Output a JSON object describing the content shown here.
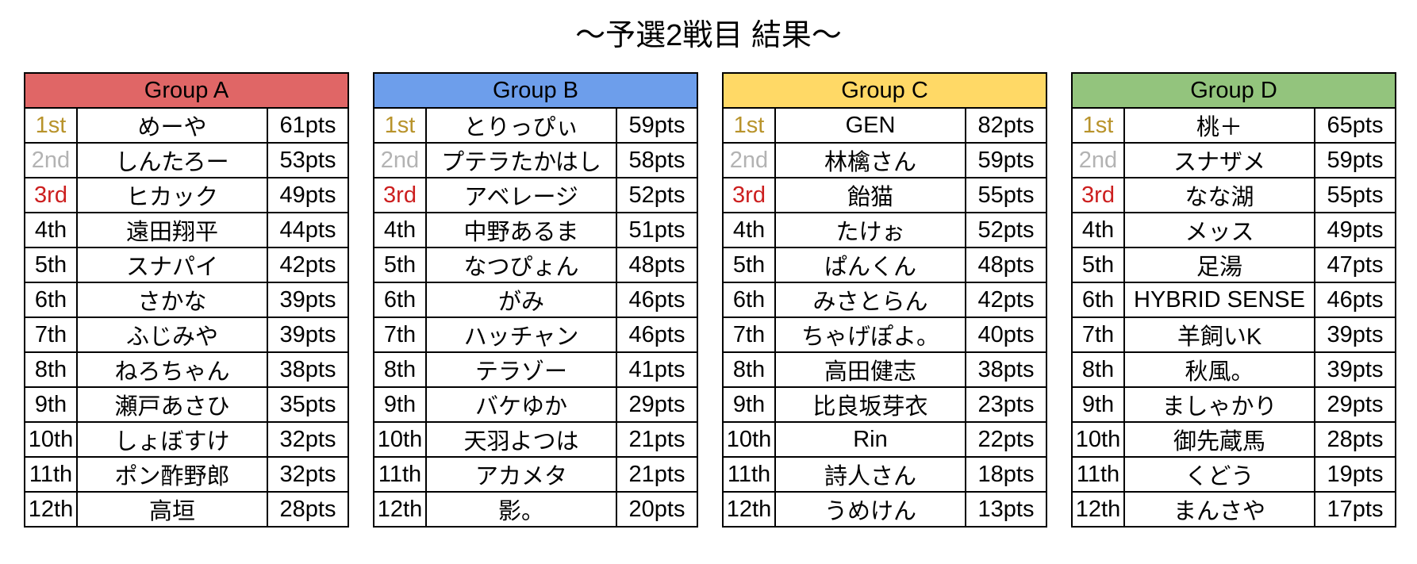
{
  "title": "～予選2戦目 結果～",
  "rank_colors": {
    "1st": "#b8932b",
    "2nd": "#b3b3b3",
    "3rd": "#cc1f1f"
  },
  "ranks": [
    "1st",
    "2nd",
    "3rd",
    "4th",
    "5th",
    "6th",
    "7th",
    "8th",
    "9th",
    "10th",
    "11th",
    "12th"
  ],
  "groups": [
    {
      "name": "Group A",
      "color": "#e06666",
      "rows": [
        {
          "name": "めーや",
          "pts": "61pts"
        },
        {
          "name": "しんたろー",
          "pts": "53pts"
        },
        {
          "name": "ヒカック",
          "pts": "49pts"
        },
        {
          "name": "遠田翔平",
          "pts": "44pts"
        },
        {
          "name": "スナパイ",
          "pts": "42pts"
        },
        {
          "name": "さかな",
          "pts": "39pts"
        },
        {
          "name": "ふじみや",
          "pts": "39pts"
        },
        {
          "name": "ねろちゃん",
          "pts": "38pts"
        },
        {
          "name": "瀬戸あさひ",
          "pts": "35pts"
        },
        {
          "name": "しょぼすけ",
          "pts": "32pts"
        },
        {
          "name": "ポン酢野郎",
          "pts": "32pts"
        },
        {
          "name": "高垣",
          "pts": "28pts"
        }
      ]
    },
    {
      "name": "Group B",
      "color": "#6d9eeb",
      "rows": [
        {
          "name": "とりっぴぃ",
          "pts": "59pts"
        },
        {
          "name": "プテラたかはし",
          "pts": "58pts"
        },
        {
          "name": "アベレージ",
          "pts": "52pts"
        },
        {
          "name": "中野あるま",
          "pts": "51pts"
        },
        {
          "name": "なつぴょん",
          "pts": "48pts"
        },
        {
          "name": "がみ",
          "pts": "46pts"
        },
        {
          "name": "ハッチャン",
          "pts": "46pts"
        },
        {
          "name": "テラゾー",
          "pts": "41pts"
        },
        {
          "name": "バケゆか",
          "pts": "29pts"
        },
        {
          "name": "天羽よつは",
          "pts": "21pts"
        },
        {
          "name": "アカメタ",
          "pts": "21pts"
        },
        {
          "name": "影。",
          "pts": "20pts"
        }
      ]
    },
    {
      "name": "Group C",
      "color": "#ffd966",
      "rows": [
        {
          "name": "GEN",
          "pts": "82pts"
        },
        {
          "name": "林檎さん",
          "pts": "59pts"
        },
        {
          "name": "飴猫",
          "pts": "55pts"
        },
        {
          "name": "たけぉ",
          "pts": "52pts"
        },
        {
          "name": "ぱんくん",
          "pts": "48pts"
        },
        {
          "name": "みさとらん",
          "pts": "42pts"
        },
        {
          "name": "ちゃげぽよ。",
          "pts": "40pts"
        },
        {
          "name": "高田健志",
          "pts": "38pts"
        },
        {
          "name": "比良坂芽衣",
          "pts": "23pts"
        },
        {
          "name": "Rin",
          "pts": "22pts"
        },
        {
          "name": "詩人さん",
          "pts": "18pts"
        },
        {
          "name": "うめけん",
          "pts": "13pts"
        }
      ]
    },
    {
      "name": "Group D",
      "color": "#93c47d",
      "rows": [
        {
          "name": "桃＋",
          "pts": "65pts"
        },
        {
          "name": "スナザメ",
          "pts": "59pts"
        },
        {
          "name": "なな湖",
          "pts": "55pts"
        },
        {
          "name": "メッス",
          "pts": "49pts"
        },
        {
          "name": "足湯",
          "pts": "47pts"
        },
        {
          "name": "HYBRID SENSE",
          "pts": "46pts"
        },
        {
          "name": "羊飼いK",
          "pts": "39pts"
        },
        {
          "name": "秋風。",
          "pts": "39pts"
        },
        {
          "name": "ましゃかり",
          "pts": "29pts"
        },
        {
          "name": "御先蔵馬",
          "pts": "28pts"
        },
        {
          "name": "くどう",
          "pts": "19pts"
        },
        {
          "name": "まんさや",
          "pts": "17pts"
        }
      ]
    }
  ]
}
